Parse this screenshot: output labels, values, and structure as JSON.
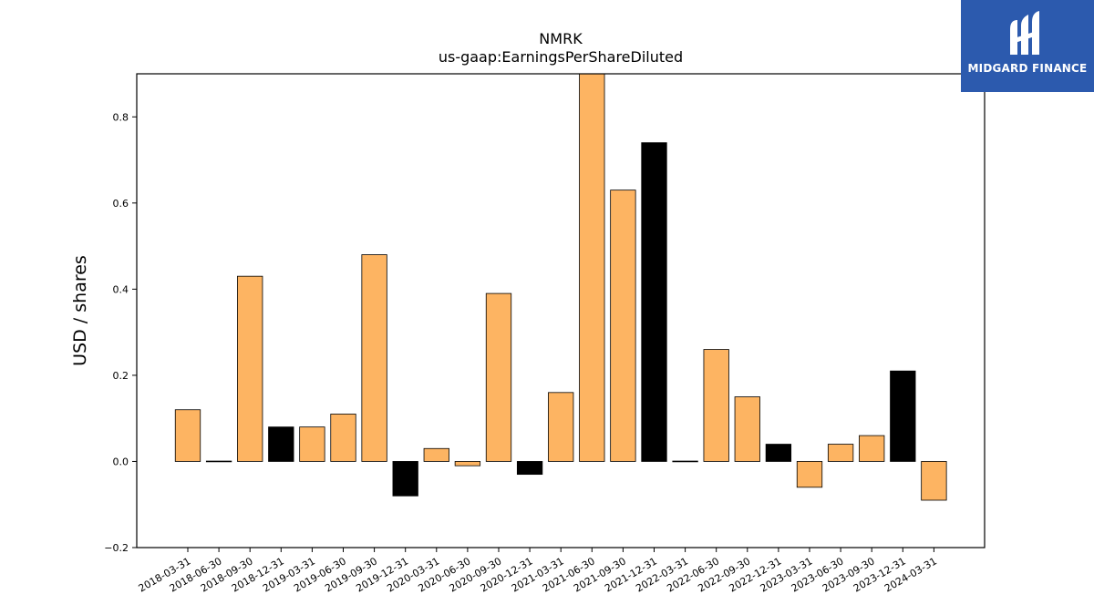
{
  "logo": {
    "text": "MIDGARD FINANCE",
    "icon": "midgard-logo-icon",
    "background": "#2c5aae"
  },
  "chart_data": {
    "type": "bar",
    "title": "NMRK",
    "subtitle": "us-gaap:EarningsPerShareDiluted",
    "xlabel": "",
    "ylabel": "USD / shares",
    "ylim": [
      -0.2,
      0.9
    ],
    "yticks": [
      -0.2,
      0.0,
      0.2,
      0.4,
      0.6,
      0.8
    ],
    "ytick_labels": [
      "−0.2",
      "0.0",
      "0.2",
      "0.4",
      "0.6",
      "0.8"
    ],
    "grid": false,
    "legend": "none",
    "colors": {
      "quarter": "#fdb462",
      "annual": "#000000",
      "edge": "#000000"
    },
    "categories": [
      "2018-03-31",
      "2018-06-30",
      "2018-09-30",
      "2018-12-31",
      "2019-03-31",
      "2019-06-30",
      "2019-09-30",
      "2019-12-31",
      "2020-03-31",
      "2020-06-30",
      "2020-09-30",
      "2020-12-31",
      "2021-03-31",
      "2021-06-30",
      "2021-09-30",
      "2021-12-31",
      "2022-03-31",
      "2022-06-30",
      "2022-09-30",
      "2022-12-31",
      "2023-03-31",
      "2023-06-30",
      "2023-09-30",
      "2023-12-31",
      "2024-03-31"
    ],
    "values": [
      0.12,
      0.0,
      0.43,
      0.08,
      0.08,
      0.11,
      0.48,
      -0.08,
      0.03,
      -0.01,
      0.39,
      -0.03,
      0.16,
      0.91,
      0.63,
      0.74,
      0.0,
      0.26,
      0.15,
      0.04,
      -0.06,
      0.04,
      0.06,
      0.21,
      -0.09
    ],
    "bar_kind": [
      "q",
      "q",
      "q",
      "a",
      "q",
      "q",
      "q",
      "a",
      "q",
      "q",
      "q",
      "a",
      "q",
      "q",
      "q",
      "a",
      "q",
      "q",
      "q",
      "a",
      "q",
      "q",
      "q",
      "a",
      "q"
    ]
  }
}
